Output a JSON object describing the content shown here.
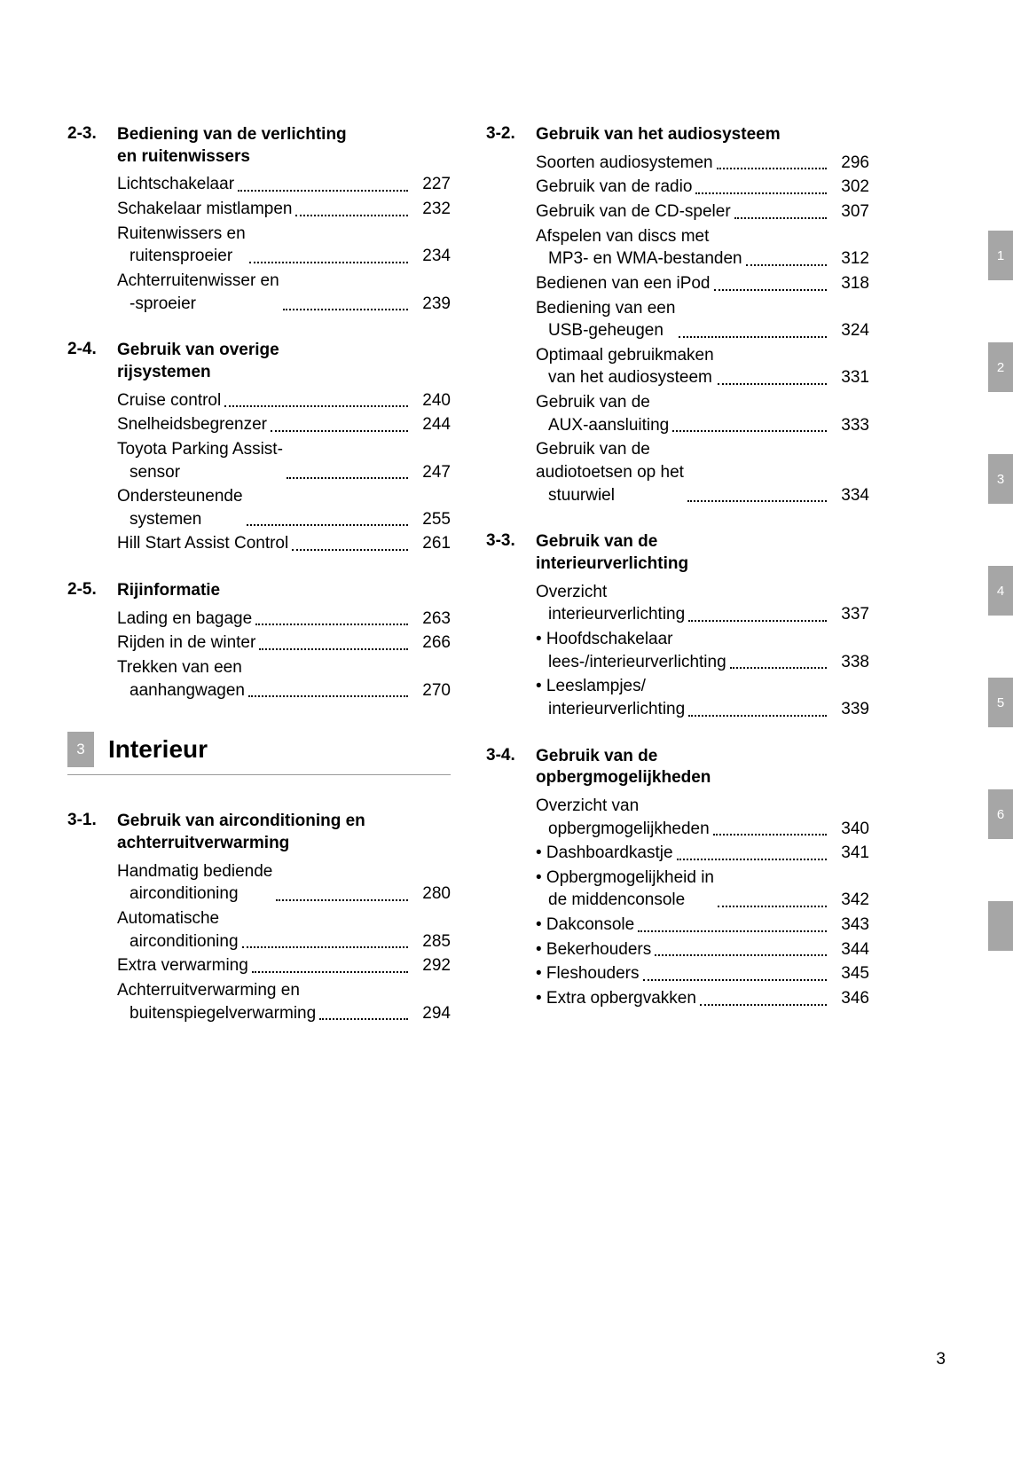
{
  "page_number": "3",
  "side_tabs": [
    "1",
    "2",
    "3",
    "4",
    "5",
    "6",
    ""
  ],
  "chapter": {
    "num": "3",
    "title": "Interieur"
  },
  "left": [
    {
      "num": "2-3.",
      "title": "Bediening van de verlichting en ruitenwissers",
      "entries": [
        {
          "lines": [
            "Lichtschakelaar"
          ],
          "page": "227"
        },
        {
          "lines": [
            "Schakelaar mistlampen"
          ],
          "page": "232"
        },
        {
          "lines": [
            "Ruitenwissers en",
            "ruitensproeier"
          ],
          "page": "234"
        },
        {
          "lines": [
            "Achterruitenwisser en",
            "-sproeier"
          ],
          "page": "239"
        }
      ]
    },
    {
      "num": "2-4.",
      "title": "Gebruik van overige rijsystemen",
      "entries": [
        {
          "lines": [
            "Cruise control"
          ],
          "page": "240"
        },
        {
          "lines": [
            "Snelheidsbegrenzer"
          ],
          "page": "244"
        },
        {
          "lines": [
            "Toyota Parking Assist-",
            "sensor"
          ],
          "page": "247"
        },
        {
          "lines": [
            "Ondersteunende",
            "systemen"
          ],
          "page": "255"
        },
        {
          "lines": [
            "Hill Start Assist Control"
          ],
          "page": "261"
        }
      ]
    },
    {
      "num": "2-5.",
      "title": "Rijinformatie",
      "entries": [
        {
          "lines": [
            "Lading en bagage"
          ],
          "page": "263"
        },
        {
          "lines": [
            "Rijden in de winter"
          ],
          "page": "266"
        },
        {
          "lines": [
            "Trekken van een",
            "aanhangwagen"
          ],
          "page": "270"
        }
      ]
    }
  ],
  "left_after_chapter": [
    {
      "num": "3-1.",
      "title": "Gebruik van airconditioning en achterruitverwarming",
      "entries": [
        {
          "lines": [
            "Handmatig bediende",
            "airconditioning"
          ],
          "page": "280"
        },
        {
          "lines": [
            "Automatische",
            "airconditioning"
          ],
          "page": "285"
        },
        {
          "lines": [
            "Extra verwarming"
          ],
          "page": "292"
        },
        {
          "lines": [
            "Achterruitverwarming en",
            "buitenspiegelverwarming"
          ],
          "page": "294"
        }
      ]
    }
  ],
  "right": [
    {
      "num": "3-2.",
      "title": "Gebruik van het audiosysteem",
      "entries": [
        {
          "lines": [
            "Soorten audiosystemen"
          ],
          "page": "296"
        },
        {
          "lines": [
            "Gebruik van de radio"
          ],
          "page": "302"
        },
        {
          "lines": [
            "Gebruik van de CD-speler"
          ],
          "page": "307"
        },
        {
          "lines": [
            "Afspelen van discs met",
            "MP3- en WMA-bestanden"
          ],
          "page": "312"
        },
        {
          "lines": [
            "Bedienen van een iPod"
          ],
          "page": "318"
        },
        {
          "lines": [
            "Bediening van een",
            "USB-geheugen"
          ],
          "page": "324"
        },
        {
          "lines": [
            "Optimaal gebruikmaken",
            "van het audiosysteem"
          ],
          "page": "331"
        },
        {
          "lines": [
            "Gebruik van de",
            "AUX-aansluiting"
          ],
          "page": "333"
        },
        {
          "lines": [
            "Gebruik van de",
            "audiotoetsen op het",
            "stuurwiel"
          ],
          "page": "334"
        }
      ]
    },
    {
      "num": "3-3.",
      "title": "Gebruik van de interieurverlichting",
      "entries": [
        {
          "lines": [
            "Overzicht",
            "interieurverlichting"
          ],
          "page": "337"
        },
        {
          "lines": [
            "• Hoofdschakelaar",
            "lees-/interieurverlichting"
          ],
          "page": "338"
        },
        {
          "lines": [
            "• Leeslampjes/",
            "interieurverlichting"
          ],
          "page": "339"
        }
      ]
    },
    {
      "num": "3-4.",
      "title": "Gebruik van de opbergmogelijkheden",
      "entries": [
        {
          "lines": [
            "Overzicht van",
            "opbergmogelijkheden"
          ],
          "page": "340"
        },
        {
          "lines": [
            "• Dashboardkastje"
          ],
          "page": "341"
        },
        {
          "lines": [
            "• Opbergmogelijkheid in",
            "de middenconsole"
          ],
          "page": "342"
        },
        {
          "lines": [
            "• Dakconsole"
          ],
          "page": "343"
        },
        {
          "lines": [
            "• Bekerhouders"
          ],
          "page": "344"
        },
        {
          "lines": [
            "• Fleshouders"
          ],
          "page": "345"
        },
        {
          "lines": [
            "• Extra opbergvakken"
          ],
          "page": "346"
        }
      ]
    }
  ]
}
